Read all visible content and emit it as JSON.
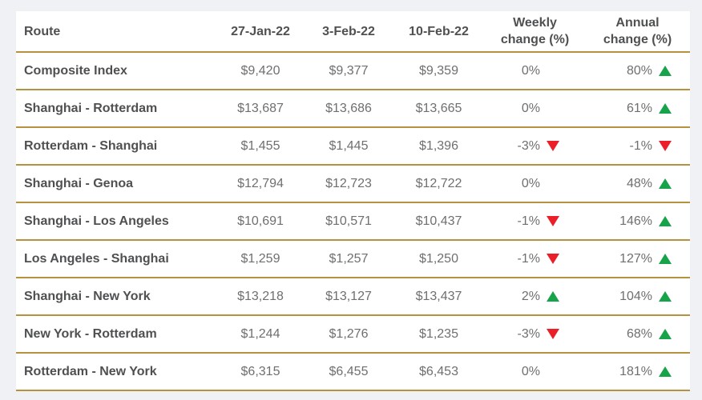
{
  "colors": {
    "green": "#17a349",
    "red": "#eb1f28",
    "border": "#b6923f",
    "page_background": "#f0f1f5",
    "header_text": "#4f5052",
    "value_text": "#6e6f71"
  },
  "table": {
    "headers": [
      {
        "id": "route",
        "label": "Route"
      },
      {
        "id": "27-jan-22",
        "label": "27-Jan-22"
      },
      {
        "id": "3-feb-22",
        "label": "3-Feb-22"
      },
      {
        "id": "10-feb-22",
        "label": "10-Feb-22"
      },
      {
        "id": "weekly-change",
        "label": "Weekly change (%)",
        "lines": [
          "Weekly",
          "change (%)"
        ]
      },
      {
        "id": "annual-change",
        "label": "Annual change (%)",
        "lines": [
          "Annual",
          "change (%)"
        ]
      }
    ],
    "rows": [
      {
        "route": "Composite Index",
        "prices": [
          "$9,420",
          "$9,377",
          "$9,359"
        ],
        "weekly": {
          "pct": "0%",
          "dir": "none"
        },
        "annual": {
          "pct": "80%",
          "dir": "up"
        }
      },
      {
        "route": "Shanghai - Rotterdam",
        "prices": [
          "$13,687",
          "$13,686",
          "$13,665"
        ],
        "weekly": {
          "pct": "0%",
          "dir": "none"
        },
        "annual": {
          "pct": "61%",
          "dir": "up"
        }
      },
      {
        "route": "Rotterdam - Shanghai",
        "prices": [
          "$1,455",
          "$1,445",
          "$1,396"
        ],
        "weekly": {
          "pct": "-3%",
          "dir": "down"
        },
        "annual": {
          "pct": "-1%",
          "dir": "down"
        }
      },
      {
        "route": "Shanghai - Genoa",
        "prices": [
          "$12,794",
          "$12,723",
          "$12,722"
        ],
        "weekly": {
          "pct": "0%",
          "dir": "none"
        },
        "annual": {
          "pct": "48%",
          "dir": "up"
        }
      },
      {
        "route": "Shanghai - Los Angeles",
        "prices": [
          "$10,691",
          "$10,571",
          "$10,437"
        ],
        "weekly": {
          "pct": "-1%",
          "dir": "down"
        },
        "annual": {
          "pct": "146%",
          "dir": "up"
        }
      },
      {
        "route": "Los Angeles - Shanghai",
        "prices": [
          "$1,259",
          "$1,257",
          "$1,250"
        ],
        "weekly": {
          "pct": "-1%",
          "dir": "down"
        },
        "annual": {
          "pct": "127%",
          "dir": "up"
        }
      },
      {
        "route": "Shanghai - New York",
        "prices": [
          "$13,218",
          "$13,127",
          "$13,437"
        ],
        "weekly": {
          "pct": "2%",
          "dir": "up"
        },
        "annual": {
          "pct": "104%",
          "dir": "up"
        }
      },
      {
        "route": "New York - Rotterdam",
        "prices": [
          "$1,244",
          "$1,276",
          "$1,235"
        ],
        "weekly": {
          "pct": "-3%",
          "dir": "down"
        },
        "annual": {
          "pct": "68%",
          "dir": "up"
        }
      },
      {
        "route": "Rotterdam - New York",
        "prices": [
          "$6,315",
          "$6,455",
          "$6,453"
        ],
        "weekly": {
          "pct": "0%",
          "dir": "none"
        },
        "annual": {
          "pct": "181%",
          "dir": "up"
        }
      }
    ]
  }
}
